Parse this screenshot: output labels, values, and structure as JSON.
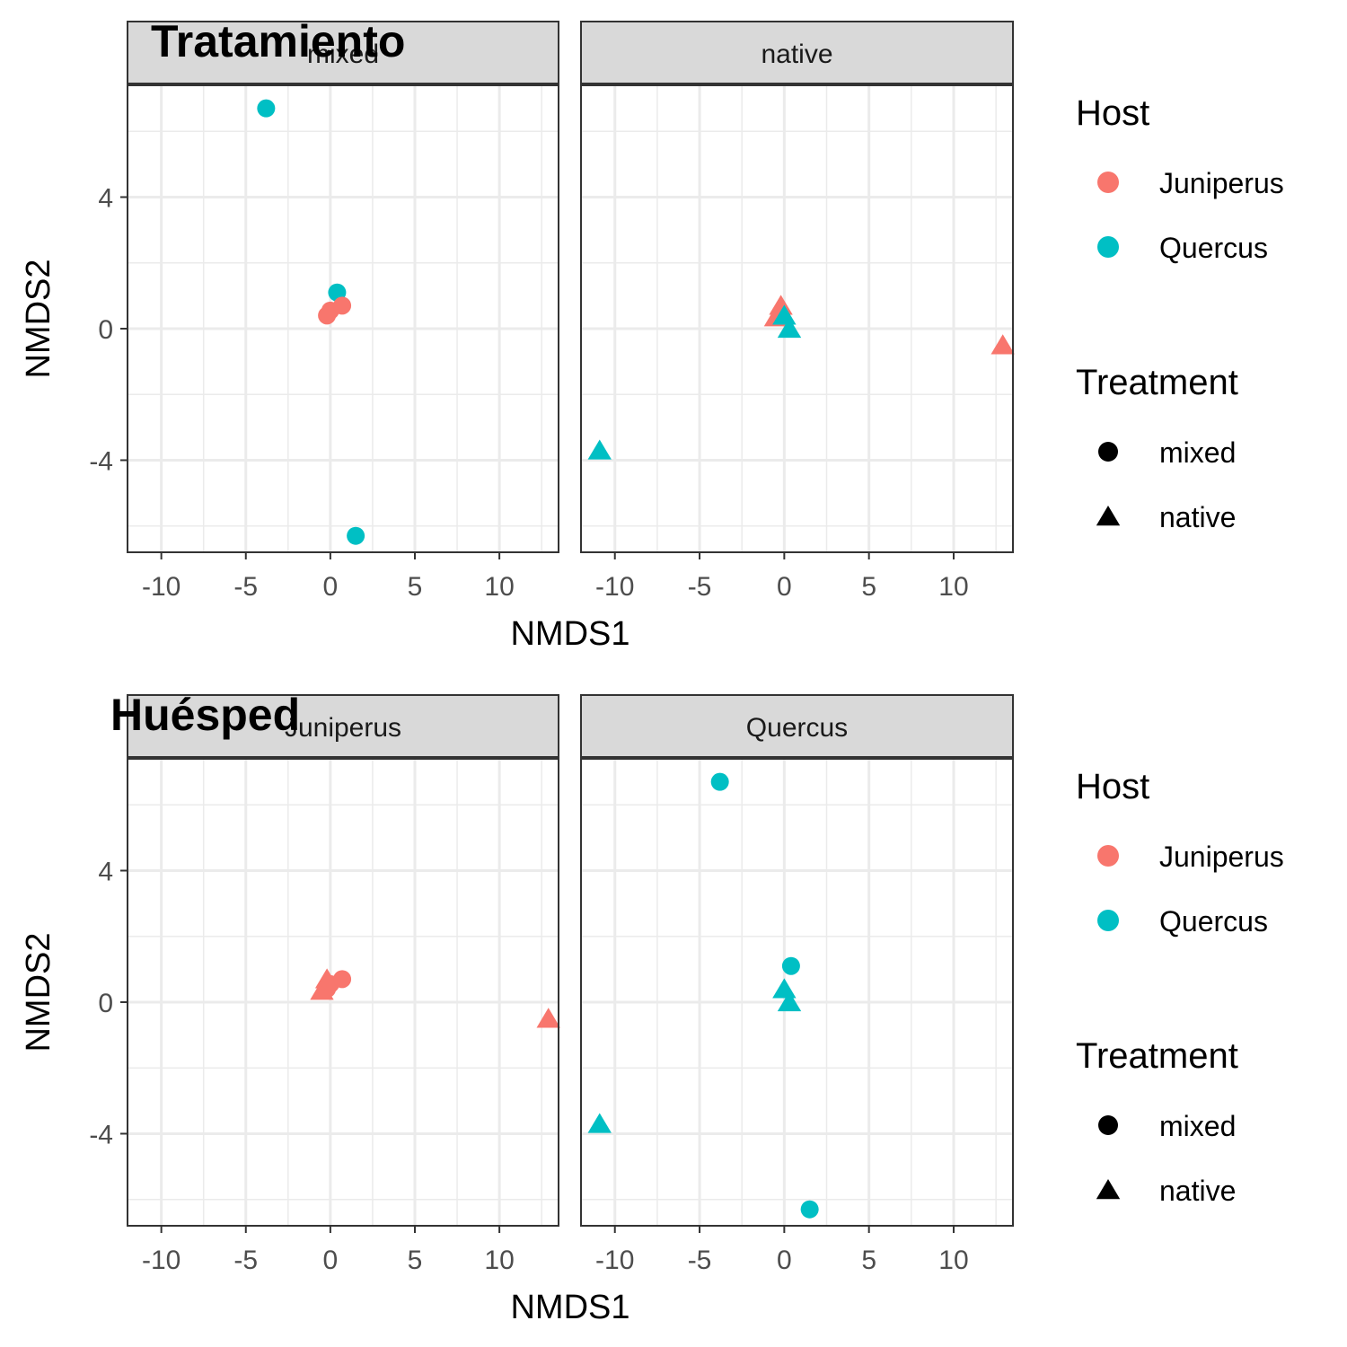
{
  "colors": {
    "juniperus": "#F8766D",
    "quercus": "#00BFC4",
    "strip_fill": "#d9d9d9",
    "panel_border": "#333333",
    "grid": "#ebebeb",
    "legend_shape": "#000000"
  },
  "chart_data": [
    {
      "type": "scatter",
      "tag": "Tratamiento",
      "facet_by": "Treatment",
      "xlabel": "NMDS1",
      "ylabel": "NMDS2",
      "xlim": [
        -12,
        13.5
      ],
      "ylim": [
        -6.8,
        7.4
      ],
      "x_ticks": [
        -10,
        -5,
        0,
        5,
        10
      ],
      "x_tick_labels": [
        "-10",
        "-5",
        "0",
        "5",
        "10"
      ],
      "y_ticks": [
        -4,
        0,
        4
      ],
      "y_tick_labels": [
        "-4",
        "0",
        "4"
      ],
      "grid": true,
      "panels": [
        {
          "label": "mixed",
          "points": [
            {
              "x": -3.8,
              "y": 6.7,
              "host": "Quercus",
              "treatment": "mixed"
            },
            {
              "x": 0.4,
              "y": 1.1,
              "host": "Quercus",
              "treatment": "mixed"
            },
            {
              "x": 1.5,
              "y": -6.3,
              "host": "Quercus",
              "treatment": "mixed"
            },
            {
              "x": -0.2,
              "y": 0.4,
              "host": "Juniperus",
              "treatment": "mixed"
            },
            {
              "x": 0.0,
              "y": 0.55,
              "host": "Juniperus",
              "treatment": "mixed"
            },
            {
              "x": 0.7,
              "y": 0.7,
              "host": "Juniperus",
              "treatment": "mixed"
            }
          ]
        },
        {
          "label": "native",
          "points": [
            {
              "x": -0.2,
              "y": 0.7,
              "host": "Juniperus",
              "treatment": "native"
            },
            {
              "x": -0.5,
              "y": 0.35,
              "host": "Juniperus",
              "treatment": "native"
            },
            {
              "x": 12.9,
              "y": -0.5,
              "host": "Juniperus",
              "treatment": "native"
            },
            {
              "x": 0.0,
              "y": 0.4,
              "host": "Quercus",
              "treatment": "native"
            },
            {
              "x": 0.3,
              "y": 0.0,
              "host": "Quercus",
              "treatment": "native"
            },
            {
              "x": -10.9,
              "y": -3.7,
              "host": "Quercus",
              "treatment": "native"
            }
          ]
        }
      ],
      "legend": {
        "position": "right",
        "groups": [
          {
            "title": "Host",
            "kind": "color",
            "items": [
              {
                "label": "Juniperus",
                "color": "#F8766D"
              },
              {
                "label": "Quercus",
                "color": "#00BFC4"
              }
            ]
          },
          {
            "title": "Treatment",
            "kind": "shape",
            "items": [
              {
                "label": "mixed",
                "shape": "circle"
              },
              {
                "label": "native",
                "shape": "triangle"
              }
            ]
          }
        ]
      }
    },
    {
      "type": "scatter",
      "tag": "Huésped",
      "facet_by": "Host",
      "xlabel": "NMDS1",
      "ylabel": "NMDS2",
      "xlim": [
        -12,
        13.5
      ],
      "ylim": [
        -6.8,
        7.4
      ],
      "x_ticks": [
        -10,
        -5,
        0,
        5,
        10
      ],
      "x_tick_labels": [
        "-10",
        "-5",
        "0",
        "5",
        "10"
      ],
      "y_ticks": [
        -4,
        0,
        4
      ],
      "y_tick_labels": [
        "-4",
        "0",
        "4"
      ],
      "grid": true,
      "panels": [
        {
          "label": "Juniperus",
          "points": [
            {
              "x": -0.2,
              "y": 0.7,
              "host": "Juniperus",
              "treatment": "native"
            },
            {
              "x": -0.5,
              "y": 0.35,
              "host": "Juniperus",
              "treatment": "native"
            },
            {
              "x": 12.9,
              "y": -0.5,
              "host": "Juniperus",
              "treatment": "native"
            },
            {
              "x": -0.2,
              "y": 0.4,
              "host": "Juniperus",
              "treatment": "mixed"
            },
            {
              "x": 0.0,
              "y": 0.55,
              "host": "Juniperus",
              "treatment": "mixed"
            },
            {
              "x": 0.7,
              "y": 0.7,
              "host": "Juniperus",
              "treatment": "mixed"
            }
          ]
        },
        {
          "label": "Quercus",
          "points": [
            {
              "x": -3.8,
              "y": 6.7,
              "host": "Quercus",
              "treatment": "mixed"
            },
            {
              "x": 0.4,
              "y": 1.1,
              "host": "Quercus",
              "treatment": "mixed"
            },
            {
              "x": 1.5,
              "y": -6.3,
              "host": "Quercus",
              "treatment": "mixed"
            },
            {
              "x": 0.0,
              "y": 0.4,
              "host": "Quercus",
              "treatment": "native"
            },
            {
              "x": 0.3,
              "y": 0.0,
              "host": "Quercus",
              "treatment": "native"
            },
            {
              "x": -10.9,
              "y": -3.7,
              "host": "Quercus",
              "treatment": "native"
            }
          ]
        }
      ],
      "legend": {
        "position": "right",
        "groups": [
          {
            "title": "Host",
            "kind": "color",
            "items": [
              {
                "label": "Juniperus",
                "color": "#F8766D"
              },
              {
                "label": "Quercus",
                "color": "#00BFC4"
              }
            ]
          },
          {
            "title": "Treatment",
            "kind": "shape",
            "items": [
              {
                "label": "mixed",
                "shape": "circle"
              },
              {
                "label": "native",
                "shape": "triangle"
              }
            ]
          }
        ]
      }
    }
  ]
}
